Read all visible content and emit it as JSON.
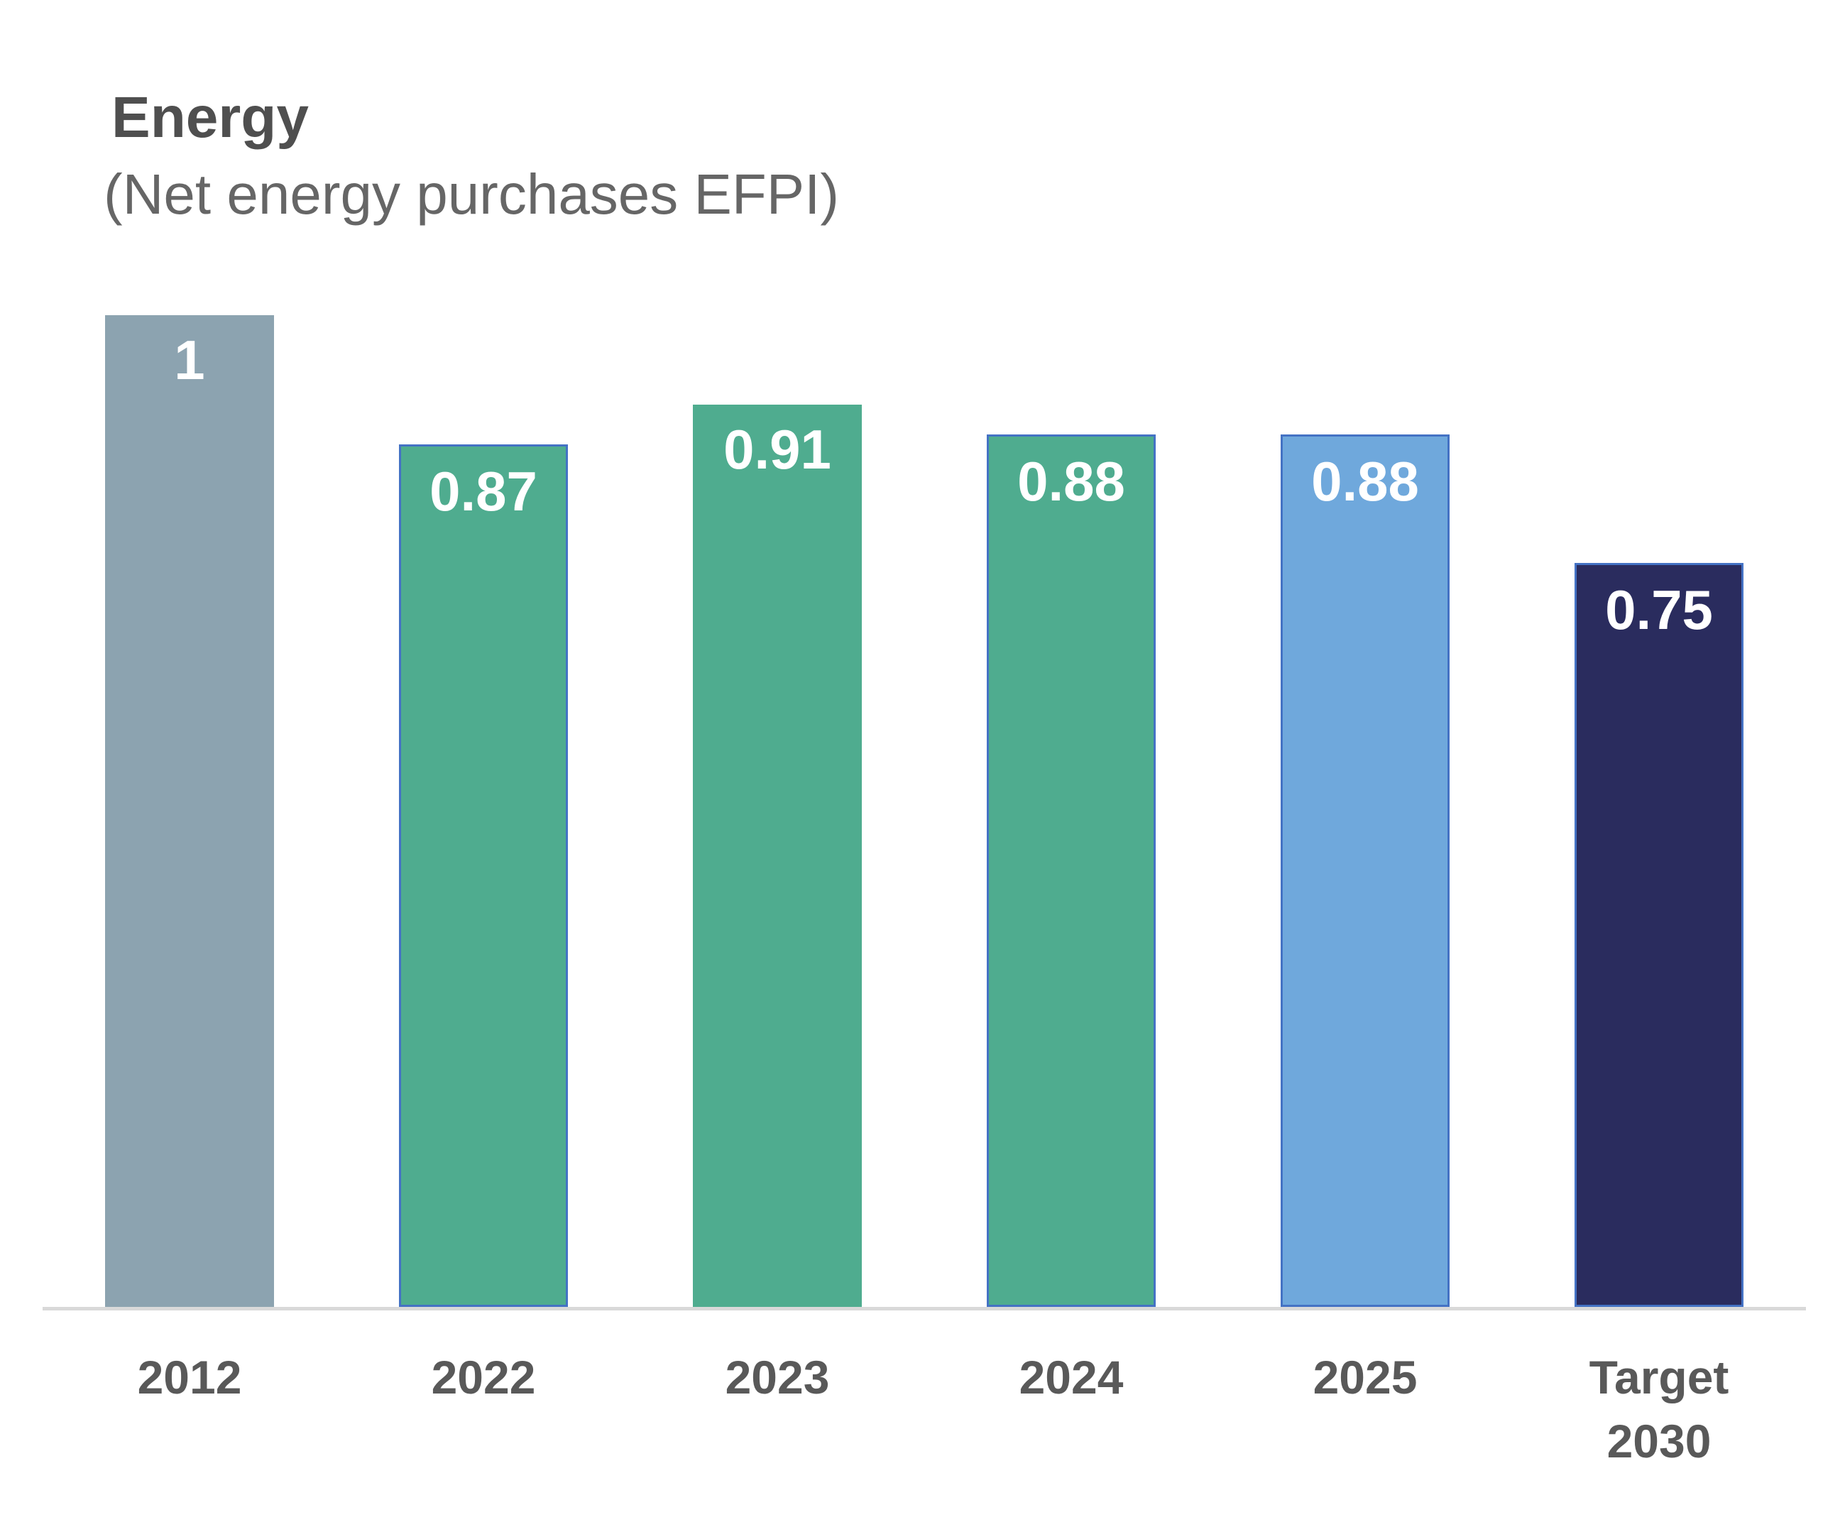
{
  "chart_data": {
    "type": "bar",
    "title": "Energy",
    "subtitle": "(Net energy purchases EFPI)",
    "categories": [
      "2012",
      "2022",
      "2023",
      "2024",
      "2025",
      "Target 2030"
    ],
    "values": [
      1,
      0.87,
      0.91,
      0.88,
      0.88,
      0.75
    ],
    "value_labels": [
      "1",
      "0.87",
      "0.91",
      "0.88",
      "0.88",
      "0.75"
    ],
    "series": [
      {
        "name": "Net energy purchases EFPI",
        "values": [
          1,
          0.87,
          0.91,
          0.88,
          0.88,
          0.75
        ]
      }
    ],
    "xlabel": "",
    "ylabel": "",
    "ylim": [
      0,
      1
    ],
    "grid": false,
    "legend": false,
    "bar_colors": [
      "#8CA3B0",
      "#4FAC8F",
      "#4FAC8F",
      "#4FAC8F",
      "#6FA8DC",
      "#2A2C5E"
    ],
    "bar_border_colors": [
      null,
      "#4472C4",
      null,
      "#4472C4",
      "#4472C4",
      "#4472C4"
    ],
    "value_label_color": "#FFFFFF",
    "tick_label_color": "#595959",
    "axis_line_color": "#D9D9D9"
  },
  "colors": {
    "background": "#FFFFFF",
    "title": "#4F4F4F",
    "subtitle": "#666666"
  }
}
